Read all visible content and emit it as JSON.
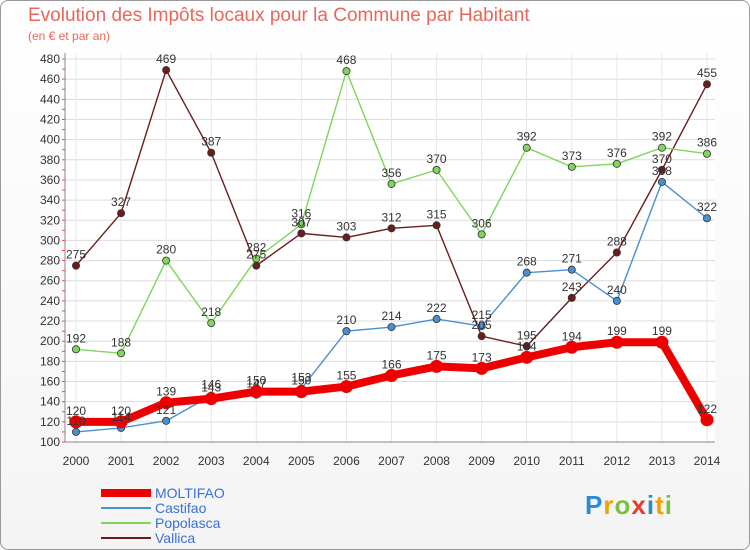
{
  "chart_data": {
    "type": "line",
    "title": "Evolution des Impôts locaux pour la Commune par Habitant",
    "subtitle": "(en € et par an)",
    "xlabel": "",
    "ylabel": "",
    "ylim": [
      100,
      480
    ],
    "y_ticks": [
      100,
      120,
      140,
      160,
      180,
      200,
      220,
      240,
      260,
      280,
      300,
      320,
      340,
      360,
      380,
      400,
      420,
      440,
      460,
      480
    ],
    "categories": [
      "2000",
      "2001",
      "2002",
      "2003",
      "2004",
      "2005",
      "2006",
      "2007",
      "2008",
      "2009",
      "2010",
      "2011",
      "2012",
      "2013",
      "2014"
    ],
    "grid": true,
    "series": [
      {
        "name": "Vallica",
        "color": "#6b1d1d",
        "values": [
          275,
          327,
          469,
          387,
          275,
          307,
          303,
          312,
          315,
          205,
          195,
          243,
          288,
          370,
          455
        ]
      },
      {
        "name": "Popolasca",
        "color": "#7fd65a",
        "values": [
          192,
          188,
          280,
          218,
          282,
          316,
          468,
          356,
          370,
          306,
          392,
          373,
          376,
          392,
          386
        ]
      },
      {
        "name": "Castifao",
        "color": "#4a90d0",
        "values": [
          110,
          114,
          121,
          146,
          147,
          153,
          210,
          214,
          222,
          215,
          268,
          271,
          240,
          358,
          322
        ]
      },
      {
        "name": "MOLTIFAO",
        "color": "#ee0000",
        "values": [
          120,
          120,
          139,
          143,
          150,
          150,
          155,
          166,
          175,
          173,
          184,
          194,
          199,
          199,
          122
        ]
      }
    ],
    "legend": [
      "MOLTIFAO",
      "Castifao",
      "Popolasca",
      "Vallica"
    ],
    "legend_position": "bottom-left"
  },
  "brand": {
    "letters": [
      "P",
      "r",
      "o",
      "x",
      "i",
      "t",
      "i"
    ],
    "colors": [
      "#2a8ad4",
      "#f2a200",
      "#7ac143",
      "#e63b2e",
      "#2a8ad4",
      "#f2a200",
      "#7ac143"
    ]
  }
}
